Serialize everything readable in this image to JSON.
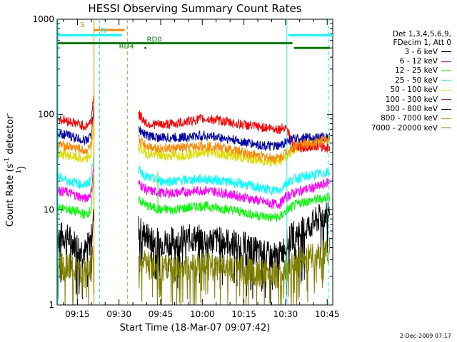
{
  "chart_data": {
    "type": "line",
    "title": "HESSI Observing Summary Count Rates",
    "xlabel": "Start Time (18-Mar-07 09:07:42)",
    "ylabel": "Count Rate (s",
    "ylabel_sup": "-1",
    "ylabel_tail": " detector",
    "ylabel_sup2": "-1",
    "ylabel_close": ")",
    "y_scale": "log",
    "ylim": [
      1,
      1000
    ],
    "xlim": [
      "09:07:42",
      "10:47:00"
    ],
    "x_tick_labels": [
      "09:15",
      "09:30",
      "09:45",
      "10:00",
      "10:15",
      "10:30",
      "10:45"
    ],
    "x_ticks_minutes": [
      555,
      570,
      585,
      600,
      615,
      630,
      645
    ],
    "y_tick_labels": [
      "1",
      "10",
      "100",
      "1000"
    ],
    "y_ticks": [
      1,
      10,
      100,
      1000
    ],
    "legend_header": [
      "Det 1,3,4,5,6,9,",
      "FDecim 1, Att 0"
    ],
    "legend_placement": "right",
    "series": [
      {
        "name": "3 - 6 keV",
        "color": "#000000",
        "x": [
          548,
          552,
          555,
          558,
          560,
          561,
          577,
          580,
          585,
          590,
          595,
          600,
          605,
          610,
          615,
          620,
          625,
          628,
          630,
          633,
          636,
          640,
          643,
          646
        ],
        "y": [
          5.5,
          5,
          4.2,
          3.6,
          5,
          9,
          6.5,
          5.2,
          4.5,
          4.8,
          5,
          5,
          4.8,
          4.6,
          4.2,
          3.6,
          3.2,
          3.3,
          4.2,
          5.5,
          6,
          7.2,
          8.5,
          10
        ]
      },
      {
        "name": "6 - 12 keV",
        "color": "#ff00ff",
        "x": [
          548,
          552,
          555,
          558,
          560,
          561,
          577,
          580,
          585,
          590,
          595,
          600,
          605,
          610,
          615,
          620,
          625,
          628,
          630,
          633,
          636,
          640,
          643,
          646
        ],
        "y": [
          16,
          15,
          14,
          13,
          15,
          30,
          19,
          16,
          15,
          15,
          15.5,
          16,
          15.5,
          14.5,
          13.5,
          12.5,
          11.5,
          11.5,
          13.5,
          15,
          16,
          17,
          18,
          20
        ]
      },
      {
        "name": "12 - 25 keV",
        "color": "#00ff00",
        "x": [
          548,
          552,
          555,
          558,
          560,
          561,
          577,
          580,
          585,
          590,
          595,
          600,
          605,
          610,
          615,
          620,
          625,
          628,
          630,
          633,
          636,
          640,
          643,
          646
        ],
        "y": [
          10.5,
          10,
          9.5,
          8.8,
          10,
          22,
          13,
          11,
          10,
          10,
          10.5,
          11,
          10.5,
          10,
          9.4,
          8.7,
          8.3,
          8.3,
          9.6,
          11,
          12,
          12.5,
          13,
          14
        ]
      },
      {
        "name": "25 - 50 keV",
        "color": "#00ffff",
        "x": [
          548,
          552,
          555,
          558,
          560,
          561,
          577,
          580,
          585,
          590,
          595,
          600,
          605,
          610,
          615,
          620,
          625,
          628,
          630,
          633,
          636,
          640,
          643,
          646
        ],
        "y": [
          22,
          20,
          19,
          18,
          21,
          42,
          26,
          22,
          20,
          20,
          20.5,
          21,
          20.5,
          19.5,
          18.5,
          17,
          16,
          16,
          19,
          21,
          22,
          23,
          24,
          25
        ]
      },
      {
        "name": "50 - 100 keV",
        "color": "#dddd00",
        "x": [
          548,
          552,
          555,
          558,
          560,
          561,
          577,
          580,
          585,
          590,
          595,
          600,
          605,
          610,
          615,
          620,
          625,
          628,
          630,
          633,
          636,
          640,
          643,
          646
        ],
        "y": [
          39,
          37,
          35,
          33,
          38,
          80,
          45,
          39,
          37,
          37,
          38,
          40,
          39,
          37,
          35,
          33,
          32,
          32,
          36,
          42,
          47,
          52,
          54,
          56
        ]
      },
      {
        "name": "100 - 300 keV",
        "color": "#ff0000",
        "x": [
          548,
          552,
          555,
          558,
          560,
          561,
          577,
          580,
          585,
          590,
          595,
          600,
          605,
          610,
          615,
          620,
          625,
          628,
          630,
          633,
          636,
          640,
          643,
          646
        ],
        "y": [
          90,
          85,
          80,
          75,
          85,
          170,
          100,
          80,
          78,
          80,
          85,
          90,
          88,
          82,
          78,
          74,
          72,
          70,
          75,
          45,
          45,
          47,
          46,
          44
        ]
      },
      {
        "name": "300 - 800 keV",
        "color": "#0000aa",
        "x": [
          548,
          552,
          555,
          558,
          560,
          561,
          577,
          580,
          585,
          590,
          595,
          600,
          605,
          610,
          615,
          620,
          625,
          628,
          630,
          633,
          636,
          640,
          643,
          646
        ],
        "y": [
          64,
          60,
          56,
          53,
          60,
          120,
          70,
          60,
          57,
          57,
          58,
          60,
          58,
          55,
          51,
          48,
          46,
          46,
          52,
          55,
          56,
          57,
          58,
          58
        ]
      },
      {
        "name": "800 - 7000 keV",
        "color": "#ff8800",
        "x": [
          548,
          552,
          555,
          558,
          560,
          561,
          577,
          580,
          585,
          590,
          595,
          600,
          605,
          610,
          615,
          620,
          625,
          628,
          630,
          633,
          636,
          640,
          643,
          646
        ],
        "y": [
          48,
          46,
          44,
          41,
          47,
          95,
          55,
          47,
          44,
          44,
          45,
          47,
          46,
          43,
          40,
          37,
          35,
          35,
          40,
          46,
          49,
          51,
          53,
          54
        ]
      },
      {
        "name": "7000 - 20000 keV",
        "color": "#808000",
        "x": [
          548,
          552,
          555,
          558,
          560,
          561,
          577,
          580,
          585,
          590,
          595,
          600,
          605,
          610,
          615,
          620,
          625,
          628,
          630,
          633,
          636,
          640,
          643,
          646
        ],
        "y": [
          2.6,
          2.5,
          2.3,
          2.1,
          2.5,
          4,
          3,
          2.6,
          2.4,
          2.4,
          2.5,
          2.6,
          2.5,
          2.4,
          2.3,
          2.2,
          2.1,
          2.1,
          2.4,
          2.8,
          3,
          3.2,
          3.4,
          3.6
        ]
      }
    ],
    "annotations": [
      {
        "text": "S",
        "color": "#ff8800"
      },
      {
        "text": "N",
        "color": "#00ffff"
      },
      {
        "text": "RD0",
        "color": "#008000"
      },
      {
        "text": "RD4",
        "color": "#008000"
      }
    ],
    "flag_bars": [
      {
        "label": "S",
        "color": "#ff8800",
        "x0": 561,
        "x1": 572,
        "y": 770
      },
      {
        "label": "N",
        "color": "#00ffff",
        "x0": 548,
        "x1": 571,
        "y": 680
      },
      {
        "label": "N",
        "color": "#00ffff",
        "x0": 631,
        "x1": 647,
        "y": 680
      },
      {
        "label": "RD",
        "color": "#008000",
        "x0": 548,
        "x1": 632.5,
        "y": 560
      },
      {
        "label": "RD",
        "color": "#008000",
        "x0": 633,
        "x1": 646,
        "y": 500
      }
    ],
    "vlines": [
      {
        "x": 548,
        "color": "#00ffff",
        "style": "solid"
      },
      {
        "x": 561,
        "color": "#ff8800",
        "style": "solid"
      },
      {
        "x": 563,
        "color": "#00ffff",
        "style": "dashed"
      },
      {
        "x": 573,
        "color": "#ff8800",
        "style": "dashed"
      },
      {
        "x": 630.5,
        "color": "#00ffff",
        "style": "solid"
      },
      {
        "x": 645.5,
        "color": "#00ffff",
        "style": "dashed"
      }
    ],
    "data_gap": [
      561,
      577
    ]
  },
  "footer": {
    "date_stamp": "2-Dec-2009 07:17"
  }
}
